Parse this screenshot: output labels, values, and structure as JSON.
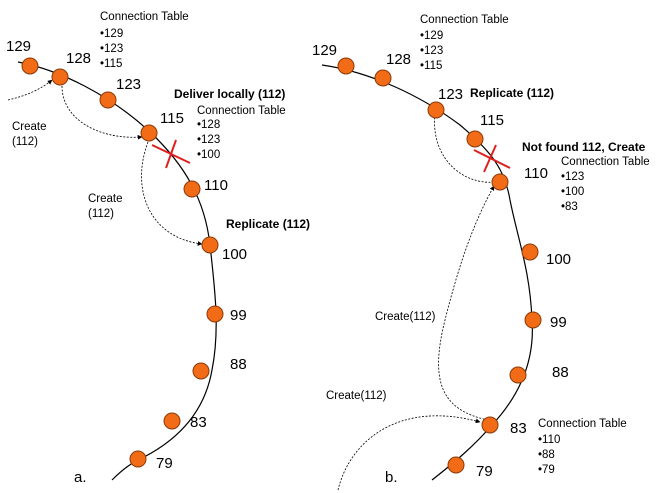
{
  "colors": {
    "node": "#F26B16",
    "node_stroke": "#8A3A08",
    "cross": "#E02020",
    "line": "#000000"
  },
  "panel_a": {
    "label": "a.",
    "nodes": [
      "129",
      "128",
      "123",
      "115",
      "110",
      "100",
      "99",
      "88",
      "83",
      "79"
    ],
    "top_table": {
      "title": "Connection Table",
      "entries": [
        "•129",
        "•123",
        "•115"
      ]
    },
    "mid_table": {
      "title": "Connection Table",
      "entries": [
        "•128",
        "•123",
        "•100"
      ]
    },
    "deliver_label": "Deliver locally (112)",
    "replicate_label": "Replicate (112)",
    "create_label_1_line1": "Create",
    "create_label_1_line2": "(112)",
    "create_label_2_line1": "Create",
    "create_label_2_line2": "(112)"
  },
  "panel_b": {
    "label": "b.",
    "nodes": [
      "129",
      "128",
      "123",
      "115",
      "110",
      "100",
      "99",
      "88",
      "83",
      "79"
    ],
    "top_table": {
      "title": "Connection Table",
      "entries": [
        "•129",
        "•123",
        "•115"
      ]
    },
    "mid_table": {
      "title": "Connection Table",
      "entries": [
        "•123",
        "•100",
        "•83"
      ]
    },
    "bottom_table": {
      "title": "Connection Table",
      "entries": [
        "•110",
        "•88",
        "•79"
      ]
    },
    "replicate_label": "Replicate (112)",
    "not_found_label": "Not found 112, Create",
    "create_mid_label": "Create(112)",
    "create_bottom_label": "Create(112)"
  }
}
